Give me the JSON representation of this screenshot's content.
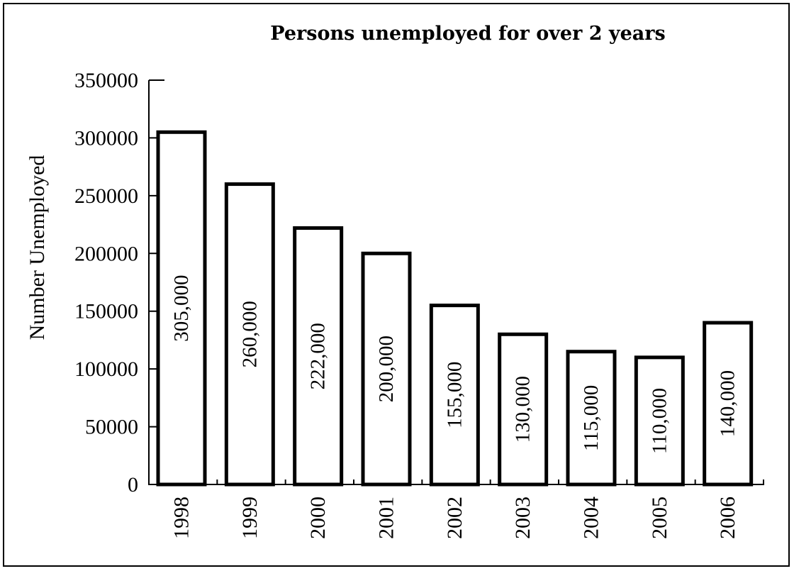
{
  "chart_data": {
    "type": "bar",
    "title": "Persons unemployed for over 2 years",
    "xlabel": "",
    "ylabel": "Number Unemployed",
    "categories": [
      "1998",
      "1999",
      "2000",
      "2001",
      "2002",
      "2003",
      "2004",
      "2005",
      "2006"
    ],
    "values": [
      305000,
      260000,
      222000,
      200000,
      155000,
      130000,
      115000,
      110000,
      140000
    ],
    "data_labels": [
      "305,000",
      "260,000",
      "222,000",
      "200,000",
      "155,000",
      "130,000",
      "115,000",
      "110,000",
      "140,000"
    ],
    "ylim": [
      0,
      350000
    ],
    "yticks": [
      0,
      50000,
      100000,
      150000,
      200000,
      250000,
      300000,
      350000
    ],
    "ytick_labels": [
      "0",
      "50000",
      "100000",
      "150000",
      "200000",
      "250000",
      "300000",
      "350000"
    ],
    "grid": false,
    "legend": "none",
    "colors": {
      "bar_fill": "#ffffff",
      "bar_stroke": "#000000",
      "axis": "#000000",
      "text": "#000000"
    }
  }
}
